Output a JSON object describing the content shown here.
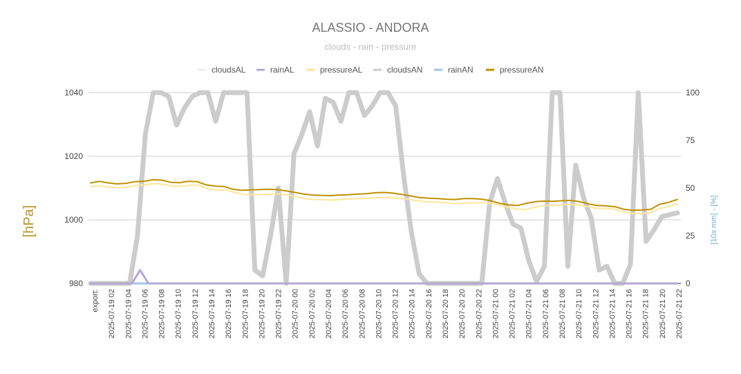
{
  "chart_data": {
    "type": "line",
    "title": "ALASSIO - ANDORA",
    "subtitle": "clouds - rain - pressure",
    "ylabel_left": "[hPa]",
    "ylabel_right": "[10x mm] - [%]",
    "ylim_left": [
      980,
      1040
    ],
    "yticks_left": [
      980,
      1000,
      1020,
      1040
    ],
    "ylim_right": [
      0,
      100
    ],
    "yticks_right": [
      0,
      25,
      50,
      75,
      100
    ],
    "grid": true,
    "legend_position": "top",
    "x_labels": [
      "export:",
      "2025-07-19 02",
      "2025-07-19 04",
      "2025-07-19 06",
      "2025-07-19 08",
      "2025-07-19 10",
      "2025-07-19 12",
      "2025-07-19 14",
      "2025-07-19 16",
      "2025-07-19 18",
      "2025-07-19 20",
      "2025-07-19 22",
      "2025-07-20 00",
      "2025-07-20 02",
      "2025-07-20 04",
      "2025-07-20 06",
      "2025-07-20 08",
      "2025-07-20 10",
      "2025-07-20 12",
      "2025-07-20 14",
      "2025-07-20 16",
      "2025-07-20 18",
      "2025-07-20 20",
      "2025-07-20 22",
      "2025-07-21 00",
      "2025-07-21 02",
      "2025-07-21 04",
      "2025-07-21 06",
      "2025-07-21 08",
      "2025-07-21 10",
      "2025-07-21 12",
      "2025-07-21 14",
      "2025-07-21 16",
      "2025-07-21 18",
      "2025-07-21 20",
      "2025-07-21 22"
    ],
    "series": [
      {
        "name": "cloudsAL",
        "color": "#eeeeee",
        "axis": "right",
        "width": 2,
        "values": [
          0,
          0,
          0,
          0,
          0,
          0,
          0,
          0,
          0,
          0,
          0,
          0,
          0,
          0,
          0,
          0,
          0,
          0,
          0,
          0,
          0,
          0,
          0,
          0,
          0,
          0,
          0,
          0,
          0,
          0,
          0,
          0,
          0,
          0,
          0,
          0,
          0,
          0,
          0,
          0,
          0,
          0,
          0,
          0,
          0,
          0,
          0,
          0,
          0,
          0,
          0,
          0,
          0,
          0,
          0,
          0,
          0,
          0,
          0,
          0,
          0,
          0,
          0,
          0,
          0,
          0,
          0,
          0,
          0,
          0,
          0,
          0
        ]
      },
      {
        "name": "rainAL",
        "color": "#b4a7d6",
        "axis": "right",
        "width": 3,
        "values": [
          0,
          0,
          0,
          0,
          0,
          0,
          7,
          0,
          0,
          0,
          0,
          0,
          0,
          0,
          0,
          0,
          0,
          0,
          0,
          0,
          0,
          0,
          0,
          0,
          0,
          0,
          0,
          0,
          0,
          0,
          0,
          0,
          0,
          0,
          0,
          0,
          0,
          0,
          0,
          0,
          0,
          0,
          0,
          0,
          0,
          0,
          0,
          0,
          0,
          0,
          0,
          0,
          0,
          0,
          0,
          0,
          0,
          0,
          0,
          0,
          0,
          0,
          0,
          0,
          0,
          0,
          0,
          0,
          0,
          0,
          0,
          0
        ]
      },
      {
        "name": "pressureAL",
        "color": "#ffe599",
        "axis": "left",
        "width": 2,
        "values": [
          1010.4,
          1010.8,
          1010.3,
          1010.1,
          1010.3,
          1010.8,
          1011.0,
          1011.4,
          1011.2,
          1010.6,
          1010.6,
          1010.9,
          1010.8,
          1009.8,
          1009.4,
          1009.4,
          1008.6,
          1008.0,
          1007.9,
          1008.0,
          1008.1,
          1008.1,
          1007.7,
          1007.1,
          1006.6,
          1006.4,
          1006.3,
          1006.2,
          1006.5,
          1006.6,
          1006.7,
          1006.8,
          1007.0,
          1007.0,
          1006.8,
          1006.5,
          1006.1,
          1005.7,
          1005.6,
          1005.5,
          1005.2,
          1005.1,
          1005.4,
          1005.4,
          1005.3,
          1004.8,
          1004.1,
          1003.5,
          1003.2,
          1003.8,
          1004.4,
          1004.6,
          1004.6,
          1004.8,
          1004.7,
          1004.2,
          1003.6,
          1003.6,
          1003.4,
          1002.5,
          1002.0,
          1002.0,
          1002.2,
          1003.5,
          1004.2,
          1005.0
        ]
      },
      {
        "name": "cloudsAN",
        "color": "#cccccc",
        "axis": "right",
        "width": 7,
        "values": [
          0,
          0,
          0,
          0,
          0,
          0,
          25,
          78,
          100,
          100,
          98,
          83,
          92,
          98,
          100,
          100,
          85,
          100,
          100,
          100,
          100,
          7,
          4,
          25,
          50,
          0,
          68,
          78,
          90,
          72,
          97,
          95,
          85,
          100,
          100,
          88,
          93,
          100,
          100,
          93,
          57,
          27,
          5,
          0,
          0,
          0,
          0,
          0,
          0,
          0,
          0,
          42,
          55,
          42,
          31,
          29,
          12,
          1,
          9,
          100,
          100,
          9,
          62,
          45,
          34,
          7,
          9,
          0,
          0,
          10,
          100,
          22,
          28,
          35,
          36,
          37
        ]
      },
      {
        "name": "rainAN",
        "color": "#9fc5e8",
        "axis": "right",
        "width": 3,
        "values": [
          0,
          0,
          0,
          0,
          0,
          0,
          0,
          0,
          0,
          0,
          0,
          0,
          0,
          0,
          0,
          0,
          0,
          0,
          0,
          0,
          0,
          0,
          0,
          0,
          0,
          0,
          0,
          0,
          0,
          0,
          0,
          0,
          0,
          0,
          0,
          0,
          0,
          0,
          0,
          0,
          0,
          0,
          0,
          0,
          0,
          0,
          0,
          0,
          0,
          0,
          0,
          0,
          0,
          0,
          0,
          0,
          0,
          0,
          0,
          0,
          0,
          0,
          0,
          0,
          0,
          0,
          0,
          0,
          0,
          0,
          0,
          0
        ]
      },
      {
        "name": "pressureAN",
        "color": "#bf9000",
        "axis": "left",
        "width": 2,
        "values": [
          1011.6,
          1012.1,
          1011.6,
          1011.3,
          1011.5,
          1012.0,
          1012.1,
          1012.6,
          1012.5,
          1011.8,
          1011.7,
          1012.1,
          1012.0,
          1011.0,
          1010.6,
          1010.5,
          1009.6,
          1009.3,
          1009.4,
          1009.5,
          1009.6,
          1009.5,
          1009.1,
          1008.6,
          1008.1,
          1007.8,
          1007.7,
          1007.6,
          1007.8,
          1007.9,
          1008.1,
          1008.2,
          1008.5,
          1008.6,
          1008.4,
          1008.0,
          1007.5,
          1007.0,
          1006.8,
          1006.7,
          1006.5,
          1006.4,
          1006.7,
          1006.7,
          1006.5,
          1006.0,
          1005.2,
          1004.7,
          1004.5,
          1005.2,
          1005.7,
          1005.9,
          1005.8,
          1006.0,
          1006.1,
          1005.7,
          1005.0,
          1004.5,
          1004.4,
          1004.1,
          1003.3,
          1003.0,
          1003.1,
          1003.3,
          1004.9,
          1005.5,
          1006.4
        ]
      }
    ]
  }
}
